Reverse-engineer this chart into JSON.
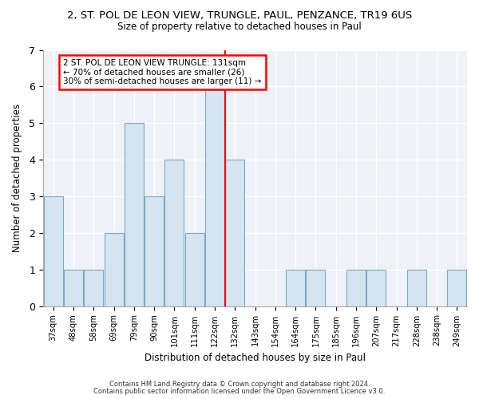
{
  "title": "2, ST. POL DE LEON VIEW, TRUNGLE, PAUL, PENZANCE, TR19 6US",
  "subtitle": "Size of property relative to detached houses in Paul",
  "xlabel": "Distribution of detached houses by size in Paul",
  "ylabel": "Number of detached properties",
  "bar_color": "#d6e4f0",
  "bar_edge_color": "#7aaac8",
  "categories": [
    "37sqm",
    "48sqm",
    "58sqm",
    "69sqm",
    "79sqm",
    "90sqm",
    "101sqm",
    "111sqm",
    "122sqm",
    "132sqm",
    "143sqm",
    "154sqm",
    "164sqm",
    "175sqm",
    "185sqm",
    "196sqm",
    "207sqm",
    "217sqm",
    "228sqm",
    "238sqm",
    "249sqm"
  ],
  "values": [
    3,
    1,
    1,
    2,
    5,
    3,
    4,
    2,
    6,
    4,
    0,
    0,
    1,
    1,
    0,
    1,
    1,
    0,
    1,
    0,
    1
  ],
  "red_line_index": 9.0,
  "ylim": [
    0,
    7
  ],
  "yticks": [
    0,
    1,
    2,
    3,
    4,
    5,
    6,
    7
  ],
  "annotation_lines": [
    "2 ST. POL DE LEON VIEW TRUNGLE: 131sqm",
    "← 70% of detached houses are smaller (26)",
    "30% of semi-detached houses are larger (11) →"
  ],
  "footer_line1": "Contains HM Land Registry data © Crown copyright and database right 2024.",
  "footer_line2": "Contains public sector information licensed under the Open Government Licence v3.0.",
  "background_color": "#ffffff",
  "plot_background": "#eef2f7"
}
